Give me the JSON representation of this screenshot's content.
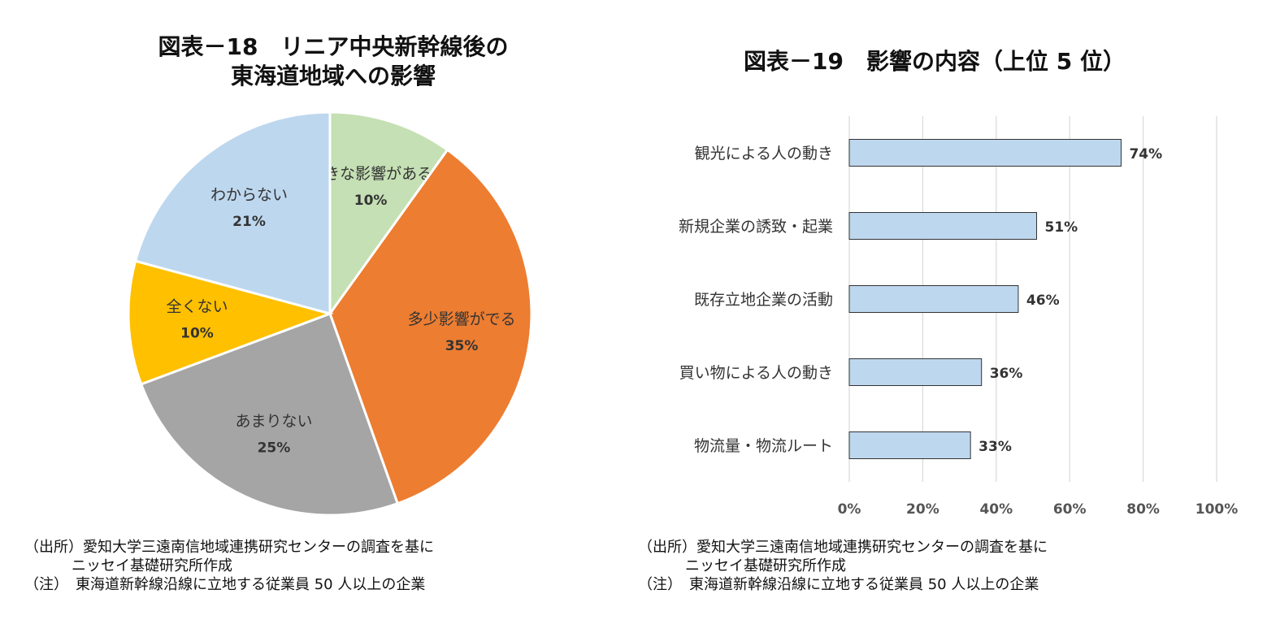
{
  "chart_data": [
    {
      "type": "pie",
      "title_line1": "図表－18　リニア中央新幹線後の",
      "title_line2": "東海道地域への影響",
      "slices": [
        {
          "label": "大きな影響がある",
          "value": 10,
          "pct_label": "10%",
          "color": "#c5e0b4"
        },
        {
          "label": "多少影響がでる",
          "value": 35,
          "pct_label": "35%",
          "color": "#ed7d31"
        },
        {
          "label": "あまりない",
          "value": 25,
          "pct_label": "25%",
          "color": "#a5a5a5"
        },
        {
          "label": "全くない",
          "value": 10,
          "pct_label": "10%",
          "color": "#ffc000"
        },
        {
          "label": "わからない",
          "value": 21,
          "pct_label": "21%",
          "color": "#bdd7ee"
        }
      ]
    },
    {
      "type": "bar",
      "orientation": "horizontal",
      "title": "図表－19　影響の内容（上位 5 位）",
      "categories": [
        "観光による人の動き",
        "新規企業の誘致・起業",
        "既存立地企業の活動",
        "買い物による人の動き",
        "物流量・物流ルート"
      ],
      "values": [
        74,
        51,
        46,
        36,
        33
      ],
      "value_labels": [
        "74%",
        "51%",
        "46%",
        "36%",
        "33%"
      ],
      "xlim": [
        0,
        100
      ],
      "xticks": [
        "0%",
        "20%",
        "40%",
        "60%",
        "80%",
        "100%"
      ],
      "bar_color": "#bdd7ee",
      "grid": true
    }
  ],
  "notes": {
    "left": {
      "source_line1": "（出所）愛知大学三遠南信地域連携研究センターの調査を基に",
      "source_line2": "ニッセイ基礎研究所作成",
      "note_line": "（注）　東海道新幹線沿線に立地する従業員 50 人以上の企業"
    },
    "right": {
      "source_line1": "（出所）愛知大学三遠南信地域連携研究センターの調査を基に",
      "source_line2": "ニッセイ基礎研究所作成",
      "note_line": "（注）　東海道新幹線沿線に立地する従業員 50 人以上の企業"
    }
  }
}
